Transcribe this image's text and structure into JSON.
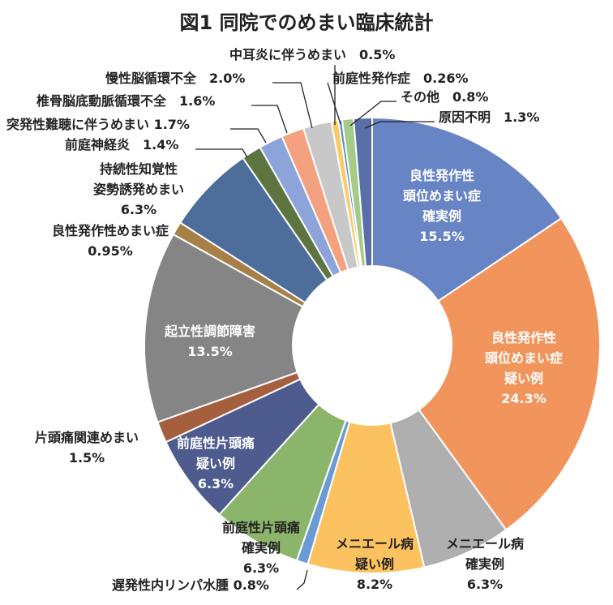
{
  "chart_data": {
    "type": "pie",
    "title": "図1 同院でのめまい臨床統計",
    "slices": [
      {
        "text": [
          "良性発作性",
          "頭位めまい症",
          "確実例",
          "15.5%"
        ],
        "value": 15.5,
        "color": "#6784C4"
      },
      {
        "text": [
          "良性発作性",
          "頭位めまい症",
          "疑い例",
          "24.3%"
        ],
        "value": 24.3,
        "color": "#F2955D"
      },
      {
        "text": [
          "メニエール病",
          "確実例",
          "6.3%"
        ],
        "value": 6.3,
        "color": "#AFAFAF"
      },
      {
        "text": [
          "メニエール病",
          "疑い例",
          "8.2%"
        ],
        "value": 8.2,
        "color": "#FBC25F"
      },
      {
        "text": [
          "遅発性内リンパ水腫 0.8%"
        ],
        "value": 0.8,
        "color": "#6A9BD6"
      },
      {
        "text": [
          "前庭性片頭痛",
          "確実例",
          "6.3%"
        ],
        "value": 6.3,
        "color": "#8CB56C"
      },
      {
        "text": [
          "前庭性片頭痛",
          "疑い例",
          "6.3%"
        ],
        "value": 6.3,
        "color": "#4D5B8E"
      },
      {
        "text": [
          "片頭痛関連めまい",
          "1.5%"
        ],
        "value": 1.5,
        "color": "#A65F3E"
      },
      {
        "text": [
          "起立性調節障害",
          "13.5%"
        ],
        "value": 13.5,
        "color": "#858585"
      },
      {
        "text": [
          "良性発作性めまい症",
          "0.95%"
        ],
        "value": 0.95,
        "color": "#A78047"
      },
      {
        "text": [
          "持続性知覚性",
          "姿勢誘発めまい",
          "6.3%"
        ],
        "value": 6.3,
        "color": "#4D6E9B"
      },
      {
        "text": [
          "前庭神経炎　1.4%"
        ],
        "value": 1.4,
        "color": "#5D7441"
      },
      {
        "text": [
          "突発性難聴に伴うめまい 1.7%"
        ],
        "value": 1.7,
        "color": "#8DA4DB"
      },
      {
        "text": [
          "椎骨脳底動脈循環不全　1.6%"
        ],
        "value": 1.6,
        "color": "#F3A17F"
      },
      {
        "text": [
          "慢性脳循環不全　2.0%"
        ],
        "value": 2.0,
        "color": "#C8C8C8"
      },
      {
        "text": [
          "中耳炎に伴うめまい　0.5%"
        ],
        "value": 0.5,
        "color": "#FBCB67"
      },
      {
        "text": [
          "前庭性発作症　0.26%"
        ],
        "value": 0.26,
        "color": "#5E8ECE"
      },
      {
        "text": [
          "その他　0.8%"
        ],
        "value": 0.8,
        "color": "#A4CC86"
      },
      {
        "text": [
          "原因不明　1.3%"
        ],
        "value": 1.3,
        "color": "#5A6EA8"
      }
    ]
  }
}
